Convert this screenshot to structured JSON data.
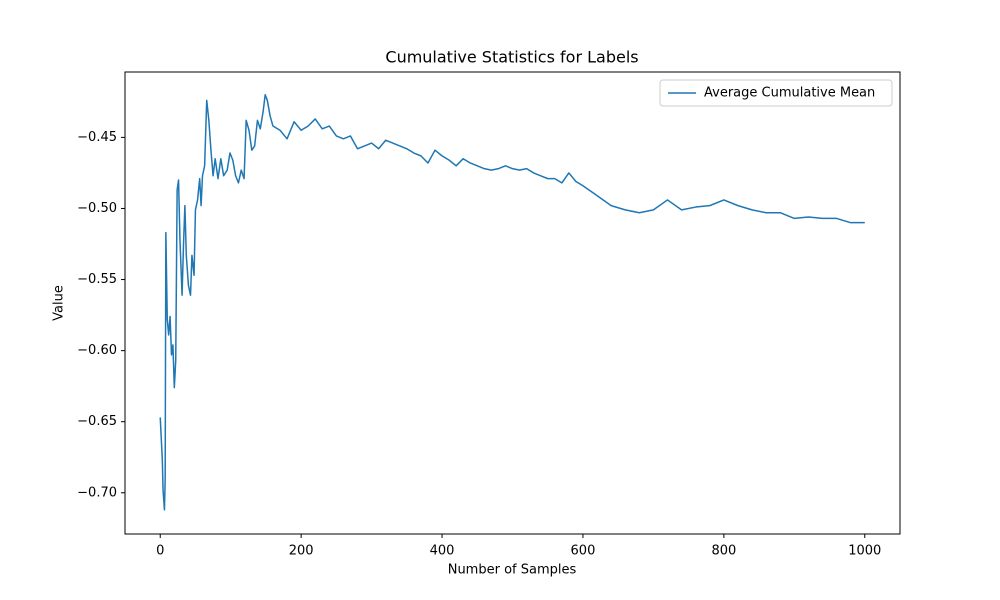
{
  "chart_data": {
    "type": "line",
    "title": "Cumulative Statistics for Labels",
    "x_label": "Number of Samples",
    "y_label": "Value",
    "xlim": [
      -50,
      1050
    ],
    "xticks": [
      0,
      200,
      400,
      600,
      800,
      1000
    ],
    "ylim": [
      -0.729,
      -0.404
    ],
    "yticks": [
      {
        "value": -0.7,
        "label": "−0.70"
      },
      {
        "value": -0.65,
        "label": "−0.65"
      },
      {
        "value": -0.6,
        "label": "−0.60"
      },
      {
        "value": -0.55,
        "label": "−0.55"
      },
      {
        "value": -0.5,
        "label": "−0.50"
      },
      {
        "value": -0.45,
        "label": "−0.45"
      }
    ],
    "grid": false,
    "legend": "upper right",
    "x": [
      0,
      3,
      4,
      6,
      7,
      8,
      10,
      12,
      14,
      16,
      18,
      20,
      22,
      24,
      26,
      28,
      31,
      33,
      35,
      37,
      40,
      43,
      45,
      48,
      50,
      53,
      56,
      58,
      60,
      63,
      66,
      69,
      72,
      75,
      78,
      82,
      86,
      90,
      95,
      99,
      103,
      107,
      111,
      115,
      119,
      122,
      126,
      130,
      134,
      138,
      142,
      146,
      149,
      152,
      156,
      160,
      170,
      180,
      190,
      200,
      210,
      220,
      230,
      240,
      250,
      260,
      270,
      280,
      290,
      300,
      310,
      320,
      330,
      340,
      350,
      360,
      370,
      380,
      390,
      400,
      410,
      420,
      430,
      440,
      450,
      460,
      470,
      480,
      490,
      500,
      510,
      520,
      530,
      540,
      550,
      560,
      570,
      580,
      590,
      600,
      620,
      640,
      660,
      680,
      700,
      720,
      740,
      760,
      780,
      800,
      820,
      840,
      860,
      880,
      900,
      920,
      940,
      960,
      980,
      1000
    ],
    "series": [
      {
        "name": "Average Cumulative Mean",
        "color": "#1f77b4",
        "values": [
          -0.647,
          -0.677,
          -0.698,
          -0.712,
          -0.691,
          -0.517,
          -0.578,
          -0.589,
          -0.576,
          -0.603,
          -0.596,
          -0.626,
          -0.607,
          -0.487,
          -0.48,
          -0.522,
          -0.561,
          -0.526,
          -0.498,
          -0.533,
          -0.554,
          -0.561,
          -0.533,
          -0.547,
          -0.501,
          -0.494,
          -0.479,
          -0.498,
          -0.477,
          -0.47,
          -0.424,
          -0.438,
          -0.459,
          -0.477,
          -0.465,
          -0.479,
          -0.465,
          -0.477,
          -0.473,
          -0.461,
          -0.466,
          -0.477,
          -0.482,
          -0.473,
          -0.479,
          -0.438,
          -0.445,
          -0.459,
          -0.456,
          -0.438,
          -0.444,
          -0.432,
          -0.42,
          -0.424,
          -0.435,
          -0.442,
          -0.445,
          -0.451,
          -0.439,
          -0.445,
          -0.442,
          -0.437,
          -0.444,
          -0.442,
          -0.449,
          -0.451,
          -0.449,
          -0.458,
          -0.456,
          -0.454,
          -0.458,
          -0.452,
          -0.454,
          -0.456,
          -0.458,
          -0.461,
          -0.463,
          -0.468,
          -0.459,
          -0.463,
          -0.466,
          -0.47,
          -0.465,
          -0.468,
          -0.47,
          -0.472,
          -0.473,
          -0.472,
          -0.47,
          -0.472,
          -0.473,
          -0.472,
          -0.475,
          -0.477,
          -0.479,
          -0.479,
          -0.482,
          -0.475,
          -0.481,
          -0.484,
          -0.491,
          -0.498,
          -0.501,
          -0.503,
          -0.501,
          -0.494,
          -0.501,
          -0.499,
          -0.498,
          -0.494,
          -0.498,
          -0.501,
          -0.503,
          -0.503,
          -0.507,
          -0.506,
          -0.507,
          -0.507,
          -0.51,
          -0.51
        ]
      }
    ]
  }
}
